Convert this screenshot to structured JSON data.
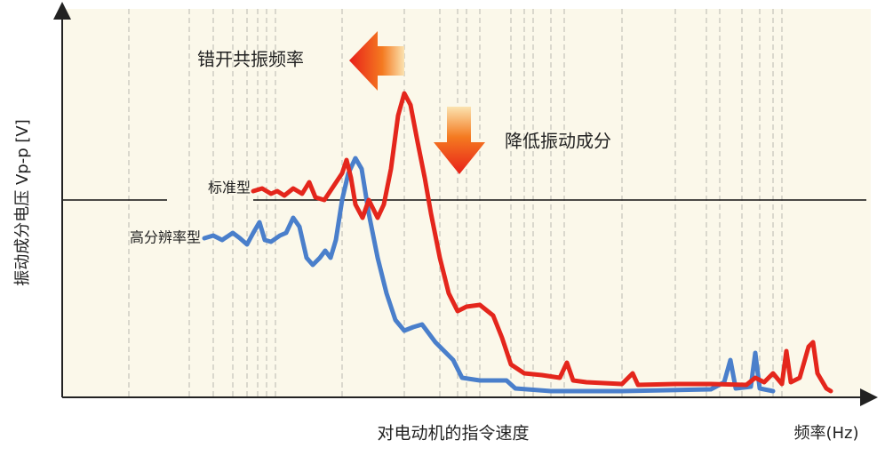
{
  "annotations": {
    "shift_resonance": "错开共振频率",
    "reduce_vibration": "降低振动成分"
  },
  "legend": {
    "standard": "标准型",
    "high_resolution": "高分辨率型"
  },
  "axes": {
    "y_label": "振动成分电压 Vp-p [V]",
    "x_label": "对电动机的指令速度",
    "x_unit": "频率(Hz)"
  }
}
